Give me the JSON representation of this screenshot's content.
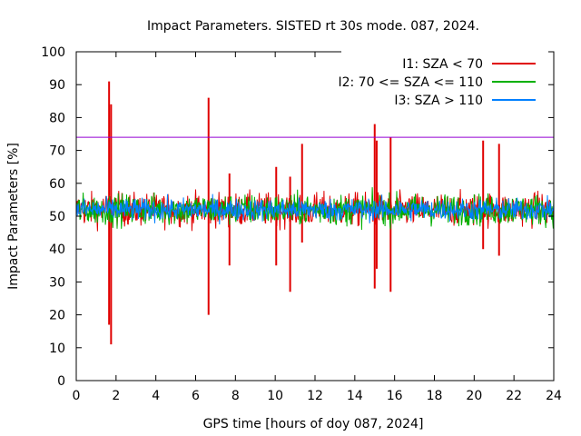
{
  "chart_data": {
    "type": "line",
    "title": "Impact Parameters. SISTED rt 30s mode. 087, 2024.",
    "xlabel": "GPS time [hours of doy 087, 2024]",
    "ylabel": "Impact Parameters [%]",
    "xlim": [
      0,
      24
    ],
    "ylim": [
      0,
      100
    ],
    "x_ticks": [
      0,
      2,
      4,
      6,
      8,
      10,
      12,
      14,
      16,
      18,
      20,
      22,
      24
    ],
    "y_ticks": [
      0,
      10,
      20,
      30,
      40,
      50,
      60,
      70,
      80,
      90,
      100
    ],
    "grid": false,
    "legend_position": "top-right",
    "reference_line": {
      "y": 74,
      "color": "#9400d3"
    },
    "series": [
      {
        "name": "I1: SZA < 70",
        "color": "#e00000",
        "baseline": 52,
        "typical_range": [
          45,
          60
        ],
        "spikes": [
          {
            "x": 1.65,
            "min": 17,
            "max": 91
          },
          {
            "x": 1.75,
            "min": 11,
            "max": 84
          },
          {
            "x": 6.65,
            "min": 20,
            "max": 86
          },
          {
            "x": 7.7,
            "min": 35,
            "max": 63
          },
          {
            "x": 10.05,
            "min": 35,
            "max": 65
          },
          {
            "x": 10.75,
            "min": 27,
            "max": 62
          },
          {
            "x": 11.35,
            "min": 42,
            "max": 72
          },
          {
            "x": 15.0,
            "min": 28,
            "max": 78
          },
          {
            "x": 15.1,
            "min": 34,
            "max": 73
          },
          {
            "x": 15.8,
            "min": 27,
            "max": 74
          },
          {
            "x": 20.45,
            "min": 40,
            "max": 73
          },
          {
            "x": 21.25,
            "min": 38,
            "max": 72
          }
        ]
      },
      {
        "name": "I2: 70 <= SZA <= 110",
        "color": "#00b000",
        "baseline": 52,
        "typical_range": [
          45,
          59
        ],
        "spikes": []
      },
      {
        "name": "I3: SZA > 110",
        "color": "#0080ff",
        "baseline": 52,
        "typical_range": [
          47,
          57
        ],
        "spikes": []
      }
    ]
  }
}
